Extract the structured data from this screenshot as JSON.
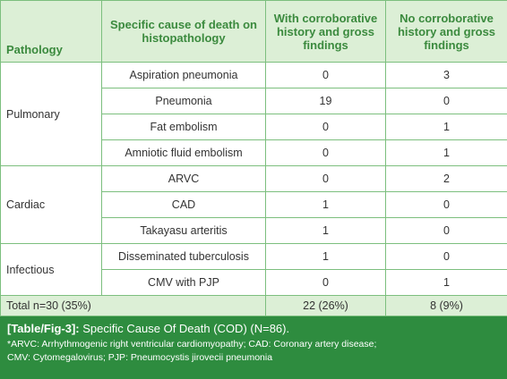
{
  "table": {
    "header": [
      "Pathology",
      "Specific cause of death on histopathology",
      "With corroborative history and gross findings",
      "No corroborative history and gross findings"
    ],
    "groups": [
      {
        "pathology": "Pulmonary",
        "rows": [
          [
            "Aspiration pneumonia",
            0,
            3
          ],
          [
            "Pneumonia",
            19,
            0
          ],
          [
            "Fat embolism",
            0,
            1
          ],
          [
            "Amniotic fluid embolism",
            0,
            1
          ]
        ]
      },
      {
        "pathology": "Cardiac",
        "rows": [
          [
            "ARVC",
            0,
            2
          ],
          [
            "CAD",
            1,
            0
          ],
          [
            "Takayasu arteritis",
            1,
            0
          ]
        ]
      },
      {
        "pathology": "Infectious",
        "rows": [
          [
            "Disseminated tuberculosis",
            1,
            0
          ],
          [
            "CMV with PJP",
            0,
            1
          ]
        ]
      }
    ],
    "total": [
      "Total n=30 (35%)",
      "22 (26%)",
      "8 (9%)"
    ]
  },
  "caption": {
    "label": "[Table/Fig-3]:",
    "title": "Specific Cause Of Death (COD) (N=86).",
    "notes": [
      "*ARVC: Arrhythmogenic right ventricular cardiomyopathy; CAD: Coronary artery disease;",
      "CMV: Cytomegalovirus; PJP: Pneumocystis jirovecii pneumonia"
    ]
  }
}
